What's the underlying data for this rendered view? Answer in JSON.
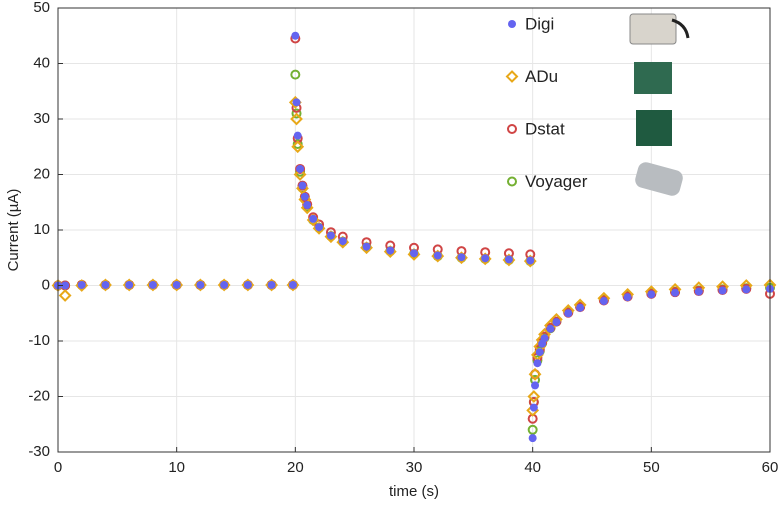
{
  "chart_data": {
    "type": "scatter",
    "xlabel": "time (s)",
    "ylabel": "Current (µA)",
    "x": [
      0,
      0.6,
      2,
      4,
      6,
      8,
      10,
      12,
      14,
      16,
      18,
      19.8,
      20,
      20.1,
      20.2,
      20.4,
      20.6,
      20.8,
      21,
      21.5,
      22,
      23,
      24,
      26,
      28,
      30,
      32,
      34,
      36,
      38,
      39.8,
      40,
      40.1,
      40.2,
      40.4,
      40.6,
      40.8,
      41,
      41.5,
      42,
      43,
      44,
      46,
      48,
      50,
      52,
      54,
      56,
      58,
      60
    ],
    "series": [
      {
        "name": "Digi",
        "color": "#6464f0",
        "marker": "filled-circle",
        "values": [
          0,
          0,
          0.1,
          0.1,
          0.1,
          0.1,
          0.1,
          0.1,
          0.1,
          0.1,
          0.1,
          0.1,
          45,
          33,
          27,
          21,
          18,
          16,
          14.5,
          12,
          10.5,
          9,
          8,
          7,
          6.3,
          5.8,
          5.4,
          5.1,
          4.9,
          4.7,
          4.5,
          -27.5,
          -22,
          -18,
          -14,
          -12,
          -10.5,
          -9.5,
          -7.8,
          -6.6,
          -5,
          -4,
          -2.8,
          -2.1,
          -1.6,
          -1.3,
          -1.1,
          -0.9,
          -0.7,
          -0.6
        ]
      },
      {
        "name": "ADu",
        "color": "#e8a818",
        "marker": "diamond",
        "values": [
          0,
          -1.8,
          0,
          0.1,
          0.1,
          0.1,
          0.1,
          0.1,
          0.1,
          0.1,
          0.1,
          0.1,
          33,
          30,
          25,
          20,
          17.5,
          15.5,
          14,
          11.8,
          10.3,
          8.8,
          7.8,
          6.8,
          6.1,
          5.6,
          5.3,
          5,
          4.8,
          4.6,
          4.4,
          -22.5,
          -20,
          -16,
          -12.5,
          -11,
          -9.8,
          -8.8,
          -7.2,
          -6.1,
          -4.5,
          -3.5,
          -2.3,
          -1.6,
          -1.1,
          -0.7,
          -0.4,
          -0.2,
          0,
          0.1
        ]
      },
      {
        "name": "Dstat",
        "color": "#d04545",
        "marker": "circle",
        "values": [
          0,
          0,
          0.1,
          0.1,
          0.1,
          0.1,
          0.1,
          0.1,
          0.1,
          0.1,
          0.1,
          0.1,
          44.5,
          32,
          26.5,
          21,
          18,
          16,
          14.6,
          12.3,
          11,
          9.6,
          8.8,
          7.8,
          7.2,
          6.8,
          6.5,
          6.2,
          6,
          5.8,
          5.6,
          -24,
          -21,
          -16,
          -13,
          -11.5,
          -10.2,
          -9.2,
          -7.6,
          -6.5,
          -4.9,
          -3.9,
          -2.7,
          -2,
          -1.5,
          -1.2,
          -1,
          -0.8,
          -0.6,
          -1.5
        ]
      },
      {
        "name": "Voyager",
        "color": "#74b032",
        "marker": "circle",
        "values": [
          0,
          0,
          0.1,
          0.1,
          0.1,
          0.1,
          0.1,
          0.1,
          0.1,
          0.1,
          0.1,
          0.1,
          38,
          31,
          25.5,
          20.5,
          17.6,
          15.6,
          14.2,
          11.8,
          10.4,
          8.9,
          7.9,
          6.9,
          6.2,
          5.7,
          5.3,
          5,
          4.8,
          4.6,
          4.4,
          -26,
          -21,
          -17,
          -13.5,
          -11.8,
          -10.4,
          -9.4,
          -7.7,
          -6.5,
          -4.8,
          -3.8,
          -2.6,
          -1.9,
          -1.4,
          -1.1,
          -0.9,
          -0.7,
          -0.5,
          -0.4
        ]
      }
    ],
    "xlim": [
      0,
      60
    ],
    "xticks": [
      0,
      10,
      20,
      30,
      40,
      50,
      60
    ],
    "ylim": [
      -30,
      50
    ],
    "yticks": [
      -30,
      -20,
      -10,
      0,
      10,
      20,
      30,
      40,
      50
    ],
    "grid": true,
    "legend": "top-right"
  }
}
